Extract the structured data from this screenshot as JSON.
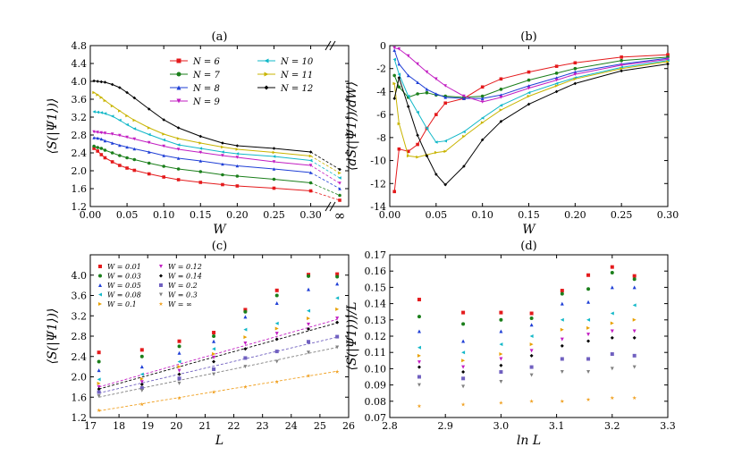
{
  "figure": {
    "panels": [
      "(a)",
      "(b)",
      "(c)",
      "(d)"
    ]
  },
  "chart_data": [
    {
      "panel": "(a)",
      "type": "line",
      "title": "(a)",
      "xlabel": "W",
      "ylabel": "⟨S(|Ψ1⟩)⟩",
      "xlim": [
        0,
        0.32
      ],
      "ylim": [
        1.2,
        4.8
      ],
      "xticks": [
        "0.00",
        "0.05",
        "0.10",
        "0.15",
        "0.20",
        "0.25",
        "0.30"
      ],
      "xtick_values": [
        0,
        0.05,
        0.1,
        0.15,
        0.2,
        0.25,
        0.3
      ],
      "yticks": [
        "1.2",
        "1.6",
        "2.0",
        "2.4",
        "2.8",
        "3.2",
        "3.6",
        "4.0",
        "4.4",
        "4.8"
      ],
      "ytick_values": [
        1.2,
        1.6,
        2.0,
        2.4,
        2.8,
        3.2,
        3.6,
        4.0,
        4.4,
        4.8
      ],
      "inf_label": "∞",
      "legend_position": "top-center",
      "x": [
        0.005,
        0.01,
        0.015,
        0.02,
        0.03,
        0.04,
        0.05,
        0.06,
        0.08,
        0.1,
        0.12,
        0.15,
        0.18,
        0.2,
        0.25,
        0.3
      ],
      "series": [
        {
          "name": "N = 6",
          "color": "#e41a1c",
          "marker": "square",
          "values": [
            2.5,
            2.44,
            2.36,
            2.29,
            2.2,
            2.12,
            2.06,
            2.01,
            1.93,
            1.86,
            1.8,
            1.74,
            1.69,
            1.66,
            1.61,
            1.55
          ],
          "inf": 1.34
        },
        {
          "name": "N = 7",
          "color": "#1b7f1b",
          "marker": "circle",
          "values": [
            2.55,
            2.52,
            2.5,
            2.46,
            2.4,
            2.34,
            2.29,
            2.25,
            2.17,
            2.1,
            2.04,
            1.98,
            1.91,
            1.88,
            1.81,
            1.73
          ],
          "inf": 1.45
        },
        {
          "name": "N = 8",
          "color": "#1f3fd6",
          "marker": "triangle",
          "values": [
            2.74,
            2.73,
            2.71,
            2.67,
            2.62,
            2.57,
            2.53,
            2.49,
            2.42,
            2.34,
            2.28,
            2.22,
            2.15,
            2.11,
            2.04,
            1.96
          ],
          "inf": 1.6
        },
        {
          "name": "N = 9",
          "color": "#c21ec2",
          "marker": "tri-down",
          "values": [
            2.87,
            2.86,
            2.85,
            2.84,
            2.82,
            2.79,
            2.75,
            2.71,
            2.63,
            2.55,
            2.48,
            2.41,
            2.34,
            2.3,
            2.2,
            2.12
          ],
          "inf": 1.72
        },
        {
          "name": "N = 10",
          "color": "#12b8c8",
          "marker": "tri-left",
          "values": [
            3.32,
            3.31,
            3.3,
            3.28,
            3.22,
            3.13,
            3.03,
            2.94,
            2.81,
            2.69,
            2.58,
            2.5,
            2.42,
            2.38,
            2.32,
            2.23
          ],
          "inf": 1.84
        },
        {
          "name": "N = 11",
          "color": "#c8b400",
          "marker": "tri-right",
          "values": [
            3.75,
            3.7,
            3.64,
            3.57,
            3.45,
            3.34,
            3.23,
            3.13,
            2.96,
            2.82,
            2.72,
            2.62,
            2.53,
            2.48,
            2.41,
            2.33
          ],
          "inf": 1.95
        },
        {
          "name": "N = 12",
          "color": "#000000",
          "marker": "diamond",
          "values": [
            4.01,
            4.0,
            3.99,
            3.98,
            3.93,
            3.86,
            3.75,
            3.63,
            3.38,
            3.14,
            2.96,
            2.77,
            2.62,
            2.56,
            2.5,
            2.42
          ],
          "inf": 2.03
        }
      ]
    },
    {
      "panel": "(b)",
      "type": "line",
      "title": "(b)",
      "xlabel": "W",
      "ylabel": "⟨dS(|Ψ1⟩)/dW⟩",
      "xlim": [
        0,
        0.3
      ],
      "ylim": [
        -14,
        0
      ],
      "xticks": [
        "0.00",
        "0.05",
        "0.10",
        "0.15",
        "0.20",
        "0.25",
        "0.30"
      ],
      "xtick_values": [
        0,
        0.05,
        0.1,
        0.15,
        0.2,
        0.25,
        0.3
      ],
      "yticks": [
        "-14",
        "-12",
        "-10",
        "-8",
        "-6",
        "-4",
        "-2",
        "0"
      ],
      "ytick_values": [
        -14,
        -12,
        -10,
        -8,
        -6,
        -4,
        -2,
        0
      ],
      "x": [
        0.005,
        0.01,
        0.02,
        0.03,
        0.04,
        0.05,
        0.06,
        0.08,
        0.1,
        0.12,
        0.15,
        0.18,
        0.2,
        0.25,
        0.3
      ],
      "series": [
        {
          "name": "N = 6",
          "color": "#e41a1c",
          "marker": "square",
          "values": [
            -12.7,
            -9.0,
            -9.2,
            -8.6,
            -7.2,
            -6.0,
            -5.0,
            -4.6,
            -3.6,
            -2.9,
            -2.3,
            -1.8,
            -1.5,
            -1.0,
            -0.8
          ]
        },
        {
          "name": "N = 7",
          "color": "#1b7f1b",
          "marker": "circle",
          "values": [
            -2.6,
            -3.6,
            -4.5,
            -4.2,
            -4.1,
            -4.3,
            -4.4,
            -4.5,
            -4.4,
            -3.8,
            -3.0,
            -2.4,
            -2.0,
            -1.3,
            -1.0
          ]
        },
        {
          "name": "N = 8",
          "color": "#1f3fd6",
          "marker": "triangle",
          "values": [
            -0.4,
            -1.6,
            -2.6,
            -3.2,
            -3.8,
            -4.2,
            -4.5,
            -4.6,
            -4.6,
            -4.3,
            -3.5,
            -2.8,
            -2.3,
            -1.6,
            -1.1
          ]
        },
        {
          "name": "N = 9",
          "color": "#c21ec2",
          "marker": "tri-down",
          "values": [
            -0.2,
            -0.3,
            -0.9,
            -1.6,
            -2.3,
            -2.9,
            -3.5,
            -4.4,
            -4.9,
            -4.5,
            -3.7,
            -3.0,
            -2.5,
            -1.7,
            -1.2
          ]
        },
        {
          "name": "N = 10",
          "color": "#12b8c8",
          "marker": "tri-left",
          "values": [
            -1.2,
            -2.5,
            -4.4,
            -5.8,
            -7.2,
            -8.4,
            -8.3,
            -7.5,
            -6.3,
            -5.2,
            -4.1,
            -3.3,
            -2.8,
            -1.9,
            -1.3
          ]
        },
        {
          "name": "N = 11",
          "color": "#c8b400",
          "marker": "tri-right",
          "values": [
            -3.3,
            -6.8,
            -9.6,
            -9.7,
            -9.5,
            -9.3,
            -9.2,
            -7.9,
            -6.7,
            -5.6,
            -4.4,
            -3.5,
            -2.9,
            -2.0,
            -1.4
          ]
        },
        {
          "name": "N = 12",
          "color": "#000000",
          "marker": "diamond",
          "values": [
            -4.6,
            -2.8,
            -5.3,
            -7.8,
            -9.6,
            -11.2,
            -12.1,
            -10.5,
            -8.2,
            -6.6,
            -5.1,
            -4.0,
            -3.3,
            -2.2,
            -1.6
          ]
        }
      ]
    },
    {
      "panel": "(c)",
      "type": "scatter",
      "title": "(c)",
      "xlabel": "L",
      "ylabel": "⟨S(|Ψ1⟩)⟩",
      "xlim": [
        17,
        26
      ],
      "ylim": [
        1.2,
        4.4
      ],
      "xticks": [
        "17",
        "18",
        "19",
        "20",
        "21",
        "22",
        "23",
        "24",
        "25",
        "26"
      ],
      "xtick_values": [
        17,
        18,
        19,
        20,
        21,
        22,
        23,
        24,
        25,
        26
      ],
      "yticks": [
        "1.2",
        "1.6",
        "2.0",
        "2.4",
        "2.8",
        "3.2",
        "3.6",
        "4.0"
      ],
      "ytick_values": [
        1.2,
        1.6,
        2.0,
        2.4,
        2.8,
        3.2,
        3.6,
        4.0
      ],
      "x": [
        17.3,
        18.8,
        20.1,
        21.3,
        22.4,
        23.5,
        24.6,
        25.6
      ],
      "series": [
        {
          "name": "W = 0.01",
          "color": "#e41a1c",
          "marker": "square",
          "values": [
            2.48,
            2.53,
            2.7,
            2.87,
            3.32,
            3.7,
            4.01,
            4.02
          ]
        },
        {
          "name": "W = 0.03",
          "color": "#1b7f1b",
          "marker": "circle",
          "values": [
            2.3,
            2.4,
            2.6,
            2.8,
            3.28,
            3.6,
            3.98,
            3.97
          ]
        },
        {
          "name": "W = 0.05",
          "color": "#1f3fd6",
          "marker": "triangle",
          "values": [
            2.13,
            2.2,
            2.47,
            2.7,
            3.18,
            3.45,
            3.72,
            3.83
          ]
        },
        {
          "name": "W = 0.08",
          "color": "#12b8c8",
          "marker": "tri-left",
          "values": [
            1.95,
            2.05,
            2.3,
            2.55,
            2.93,
            3.05,
            3.3,
            3.55
          ]
        },
        {
          "name": "W = 0.1",
          "color": "#e8a000",
          "marker": "tri-right",
          "values": [
            1.87,
            1.96,
            2.2,
            2.45,
            2.78,
            2.95,
            3.15,
            3.33
          ]
        },
        {
          "name": "W = 0.12",
          "color": "#c21ec2",
          "marker": "tri-down",
          "values": [
            1.8,
            1.9,
            2.12,
            2.38,
            2.66,
            2.85,
            3.03,
            3.15
          ]
        },
        {
          "name": "W = 0.14",
          "color": "#000000",
          "marker": "diamond",
          "values": [
            1.76,
            1.85,
            2.05,
            2.3,
            2.55,
            2.74,
            2.94,
            3.07
          ]
        },
        {
          "name": "W = 0.2",
          "color": "#7060c0",
          "marker": "square",
          "values": [
            1.7,
            1.78,
            1.97,
            2.15,
            2.37,
            2.5,
            2.69,
            2.79
          ]
        },
        {
          "name": "W = 0.3",
          "color": "#808080",
          "marker": "tri-down",
          "values": [
            1.62,
            1.73,
            1.87,
            2.05,
            2.2,
            2.3,
            2.48,
            2.58
          ]
        },
        {
          "name": "W = ∞",
          "color": "#f0a020",
          "marker": "star",
          "values": [
            1.34,
            1.46,
            1.58,
            1.7,
            1.8,
            1.9,
            2.02,
            2.1
          ]
        }
      ],
      "fits": [
        {
          "color": "#c21ec2",
          "from": [
            17.3,
            1.8
          ],
          "to": [
            25.6,
            3.13
          ]
        },
        {
          "color": "#000000",
          "from": [
            17.3,
            1.76
          ],
          "to": [
            25.6,
            3.06
          ]
        },
        {
          "color": "#7060c0",
          "from": [
            17.3,
            1.68
          ],
          "to": [
            25.6,
            2.78
          ]
        },
        {
          "color": "#808080",
          "from": [
            17.3,
            1.6
          ],
          "to": [
            25.6,
            2.58
          ]
        },
        {
          "color": "#f0a020",
          "from": [
            17.3,
            1.33
          ],
          "to": [
            25.6,
            2.11
          ]
        }
      ]
    },
    {
      "panel": "(d)",
      "type": "scatter",
      "title": "(d)",
      "xlabel": "ln L",
      "ylabel": "⟨S(|Ψ1⟩)⟩/L",
      "xlim": [
        2.8,
        3.3
      ],
      "ylim": [
        0.07,
        0.17
      ],
      "xticks": [
        "2.8",
        "2.9",
        "3.0",
        "3.1",
        "3.2",
        "3.3"
      ],
      "xtick_values": [
        2.8,
        2.9,
        3.0,
        3.1,
        3.2,
        3.3
      ],
      "yticks": [
        "0.07",
        "0.08",
        "0.09",
        "0.10",
        "0.11",
        "0.12",
        "0.13",
        "0.14",
        "0.15",
        "0.16",
        "0.17"
      ],
      "ytick_values": [
        0.07,
        0.08,
        0.09,
        0.1,
        0.11,
        0.12,
        0.13,
        0.14,
        0.15,
        0.16,
        0.17
      ],
      "x": [
        2.853,
        2.932,
        3.0,
        3.055,
        3.11,
        3.157,
        3.2,
        3.24
      ],
      "series": [
        {
          "name": "W = 0.01",
          "color": "#e41a1c",
          "marker": "square",
          "values": [
            0.1425,
            0.1345,
            0.1345,
            0.134,
            0.148,
            0.1575,
            0.1625,
            0.157
          ]
        },
        {
          "name": "W = 0.03",
          "color": "#1b7f1b",
          "marker": "circle",
          "values": [
            0.132,
            0.1275,
            0.13,
            0.131,
            0.146,
            0.149,
            0.159,
            0.155
          ]
        },
        {
          "name": "W = 0.05",
          "color": "#1f3fd6",
          "marker": "triangle",
          "values": [
            0.123,
            0.117,
            0.123,
            0.127,
            0.14,
            0.141,
            0.15,
            0.15
          ]
        },
        {
          "name": "W = 0.08",
          "color": "#12b8c8",
          "marker": "tri-left",
          "values": [
            0.113,
            0.11,
            0.115,
            0.12,
            0.13,
            0.13,
            0.134,
            0.139
          ]
        },
        {
          "name": "W = 0.1",
          "color": "#e8a000",
          "marker": "tri-right",
          "values": [
            0.108,
            0.105,
            0.109,
            0.115,
            0.124,
            0.125,
            0.128,
            0.13
          ]
        },
        {
          "name": "W = 0.12",
          "color": "#c21ec2",
          "marker": "tri-down",
          "values": [
            0.104,
            0.101,
            0.106,
            0.111,
            0.118,
            0.121,
            0.123,
            0.123
          ]
        },
        {
          "name": "W = 0.14",
          "color": "#000000",
          "marker": "diamond",
          "values": [
            0.101,
            0.098,
            0.102,
            0.108,
            0.114,
            0.117,
            0.119,
            0.119
          ]
        },
        {
          "name": "W = 0.2",
          "color": "#7060c0",
          "marker": "square",
          "values": [
            0.095,
            0.094,
            0.098,
            0.101,
            0.106,
            0.106,
            0.109,
            0.108
          ]
        },
        {
          "name": "W = 0.3",
          "color": "#808080",
          "marker": "tri-down",
          "values": [
            0.09,
            0.089,
            0.092,
            0.096,
            0.098,
            0.098,
            0.1,
            0.101
          ]
        },
        {
          "name": "W = ∞",
          "color": "#f0a020",
          "marker": "star",
          "values": [
            0.077,
            0.078,
            0.079,
            0.08,
            0.08,
            0.081,
            0.082,
            0.082
          ]
        }
      ]
    }
  ]
}
